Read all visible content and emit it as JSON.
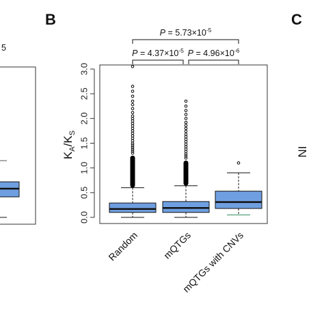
{
  "panels": {
    "left": "B",
    "right": "C"
  },
  "left_fragment": {
    "superscript_text": "5"
  },
  "right_fragment": {
    "axis_label": "NI"
  },
  "chart_data": {
    "type": "boxplot",
    "title": "",
    "ylabel": "K_A/K_S",
    "ylabel_parts": {
      "main1": "K",
      "sub1": "A",
      "slash": "/",
      "main2": "K",
      "sub2": "S"
    },
    "ylim": [
      0,
      3.1
    ],
    "yticks": [
      "0.0",
      "0.5",
      "1.0",
      "1.5",
      "2.0",
      "2.5",
      "3.0"
    ],
    "yticks_values": [
      0,
      0.5,
      1.0,
      1.5,
      2.0,
      2.5,
      3.0
    ],
    "categories": [
      "Random",
      "mQTGs",
      "mQTGs with CNVs"
    ],
    "box_color": "#6f9fe0",
    "boxes": [
      {
        "category": "Random",
        "whisker_low": 0.0,
        "q1": 0.1,
        "median": 0.17,
        "q3": 0.29,
        "whisker_high": 0.6,
        "outliers_dense_from": 0.6,
        "outliers_dense_to": 1.25,
        "outliers": [
          1.3,
          1.34,
          1.38,
          1.42,
          1.46,
          1.5,
          1.55,
          1.6,
          1.65,
          1.7,
          1.75,
          1.8,
          1.85,
          1.9,
          1.95,
          2.0,
          2.05,
          2.12,
          2.2,
          2.28,
          2.35,
          2.45,
          2.55,
          2.65,
          3.05
        ]
      },
      {
        "category": "mQTGs",
        "whisker_low": 0.0,
        "q1": 0.1,
        "median": 0.19,
        "q3": 0.32,
        "whisker_high": 0.64,
        "outliers_dense_from": 0.64,
        "outliers_dense_to": 1.15,
        "outliers": [
          1.2,
          1.24,
          1.28,
          1.33,
          1.38,
          1.43,
          1.48,
          1.53,
          1.58,
          1.63,
          1.68,
          1.74,
          1.8,
          1.86,
          1.92,
          2.0,
          2.08,
          2.16,
          2.25,
          2.35
        ]
      },
      {
        "category": "mQTGs with CNVs",
        "whisker_low": 0.05,
        "q1": 0.18,
        "median": 0.31,
        "q3": 0.53,
        "whisker_high": 0.9,
        "outliers_dense_from": 0,
        "outliers_dense_to": 0,
        "outliers": [
          1.1
        ]
      }
    ],
    "comparisons": [
      {
        "from": "Random",
        "to": "mQTGs with CNVs",
        "p_italic": "P",
        "label": " = 5.73×10",
        "exponent": "-5"
      },
      {
        "from": "Random",
        "to": "mQTGs",
        "p_italic": "P",
        "label": " = 4.37×10",
        "exponent": "-5"
      },
      {
        "from": "mQTGs",
        "to": "mQTGs with CNVs",
        "p_italic": "P",
        "label": " = 4.96×10",
        "exponent": "-6"
      }
    ]
  }
}
